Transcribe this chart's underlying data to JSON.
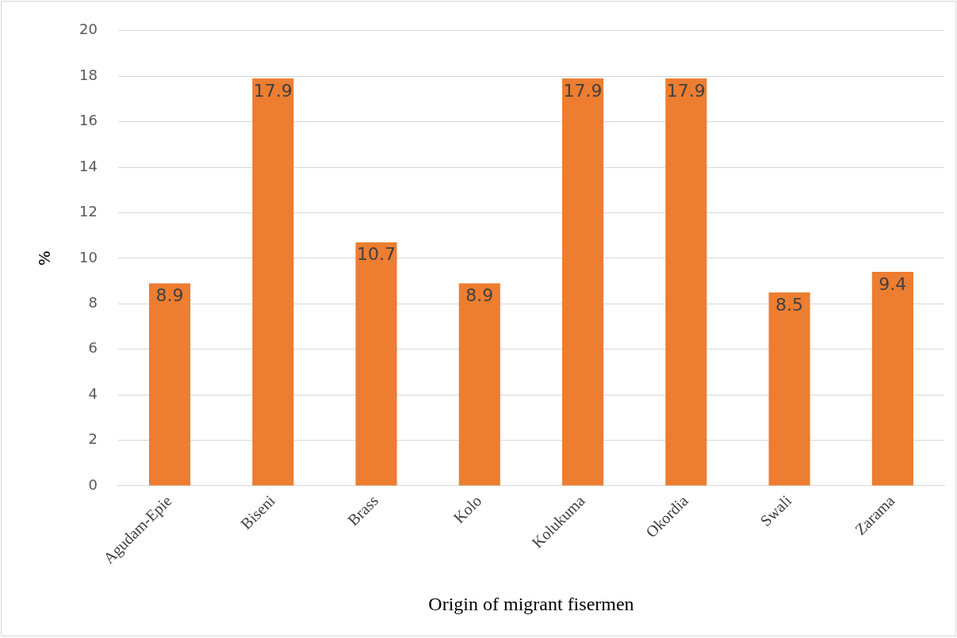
{
  "chart_data": {
    "type": "bar",
    "xlabel": "Origin of migrant fisermen",
    "ylabel": "%",
    "categories": [
      "Agudam-Epie",
      "Biseni",
      "Brass",
      "Kolo",
      "Kolukuma",
      "Okordia",
      "Swali",
      "Zarama"
    ],
    "values": [
      8.9,
      17.9,
      10.7,
      8.9,
      17.9,
      17.9,
      8.5,
      9.4
    ],
    "color": "#ed7d31",
    "ylim": [
      0,
      20
    ],
    "yticks": [
      0,
      2,
      4,
      6,
      8,
      10,
      12,
      14,
      16,
      18,
      20
    ],
    "grid": "y",
    "data_labels": true,
    "legend": false
  }
}
